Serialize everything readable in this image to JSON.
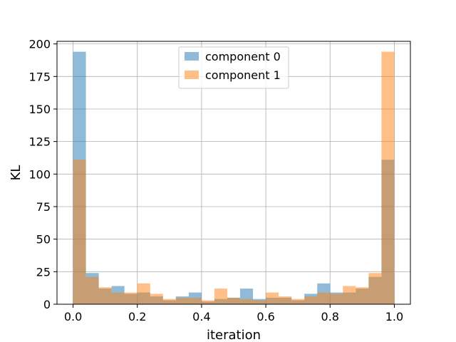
{
  "chart_data": {
    "type": "bar",
    "xlabel": "iteration",
    "ylabel": "KL",
    "xlim": [
      -0.05,
      1.05
    ],
    "ylim": [
      0,
      202
    ],
    "xticks": [
      "0.0",
      "0.2",
      "0.4",
      "0.6",
      "0.8",
      "1.0"
    ],
    "xtick_values": [
      0.0,
      0.2,
      0.4,
      0.6,
      0.8,
      1.0
    ],
    "yticks": [
      "0",
      "25",
      "50",
      "75",
      "100",
      "125",
      "150",
      "175",
      "200"
    ],
    "ytick_values": [
      0,
      25,
      50,
      75,
      100,
      125,
      150,
      175,
      200
    ],
    "grid": true,
    "legend_position": "top-center",
    "bin_edges": [
      0.0,
      0.04,
      0.08,
      0.12,
      0.16,
      0.2,
      0.24,
      0.28,
      0.32,
      0.36,
      0.4,
      0.44,
      0.48,
      0.52,
      0.56,
      0.6,
      0.64,
      0.68,
      0.72,
      0.76,
      0.8,
      0.84,
      0.88,
      0.92,
      0.96,
      1.0
    ],
    "series": [
      {
        "name": "component 0",
        "color": "#1f77b4",
        "values": [
          194,
          24,
          12,
          14,
          8,
          9,
          6,
          3,
          6,
          9,
          2,
          4,
          5,
          12,
          4,
          5,
          5,
          3,
          8,
          16,
          9,
          9,
          12,
          21,
          111
        ]
      },
      {
        "name": "component 1",
        "color": "#ff7f0e",
        "values": [
          111,
          21,
          13,
          9,
          9,
          16,
          8,
          4,
          5,
          5,
          3,
          12,
          5,
          4,
          3,
          9,
          6,
          4,
          6,
          9,
          8,
          14,
          13,
          24,
          194
        ]
      }
    ]
  }
}
